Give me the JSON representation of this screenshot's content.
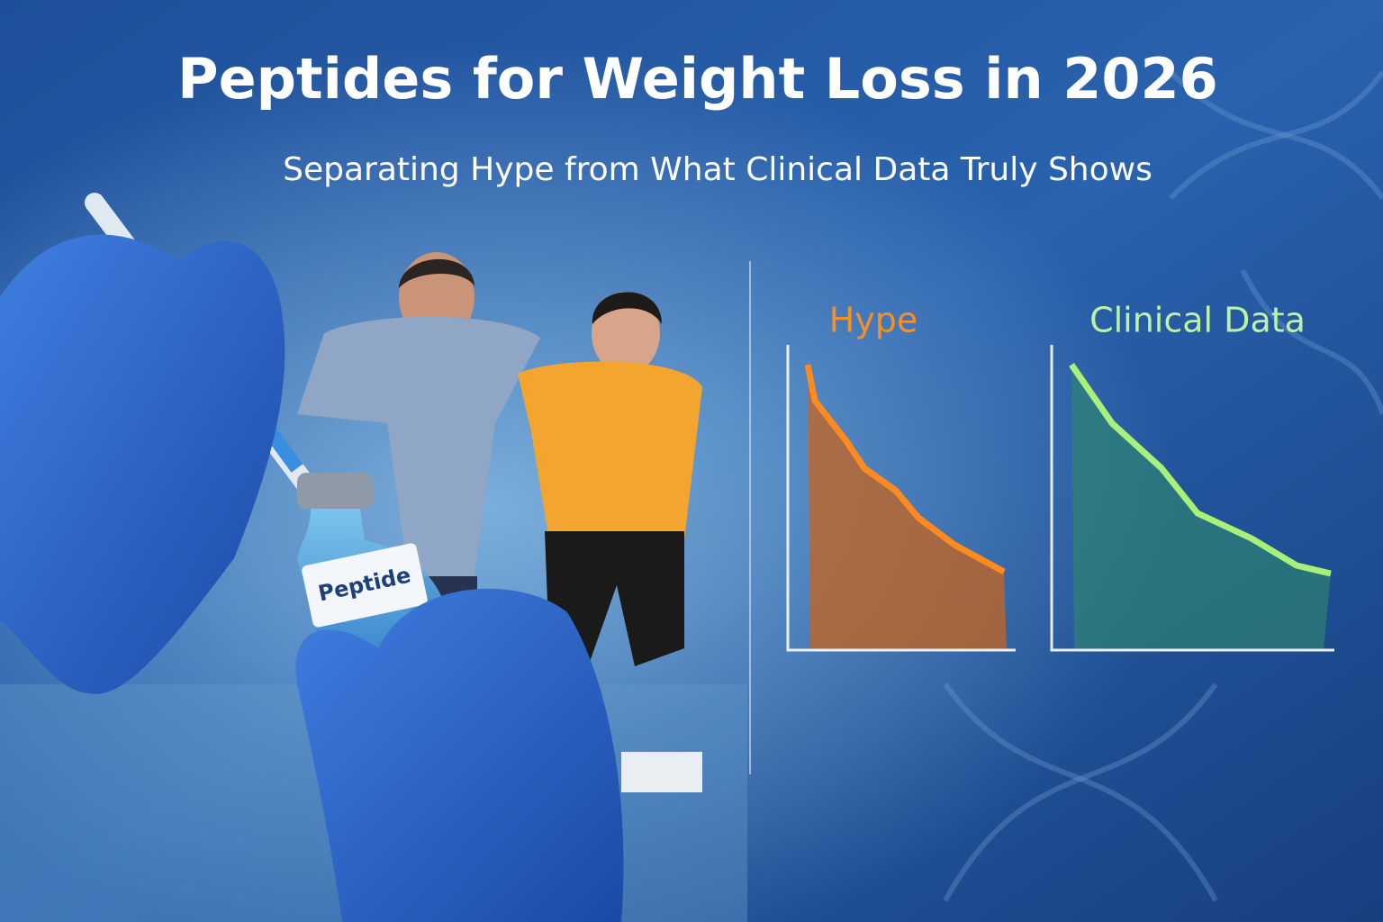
{
  "header": {
    "title": "Peptides for Weight Loss in 2026",
    "subtitle": "Separating Hype from What Clinical Data Truly Shows"
  },
  "vial": {
    "label": "Peptide"
  },
  "panels": [
    {
      "title": "Hype"
    },
    {
      "title": "Clinical Data"
    }
  ]
}
